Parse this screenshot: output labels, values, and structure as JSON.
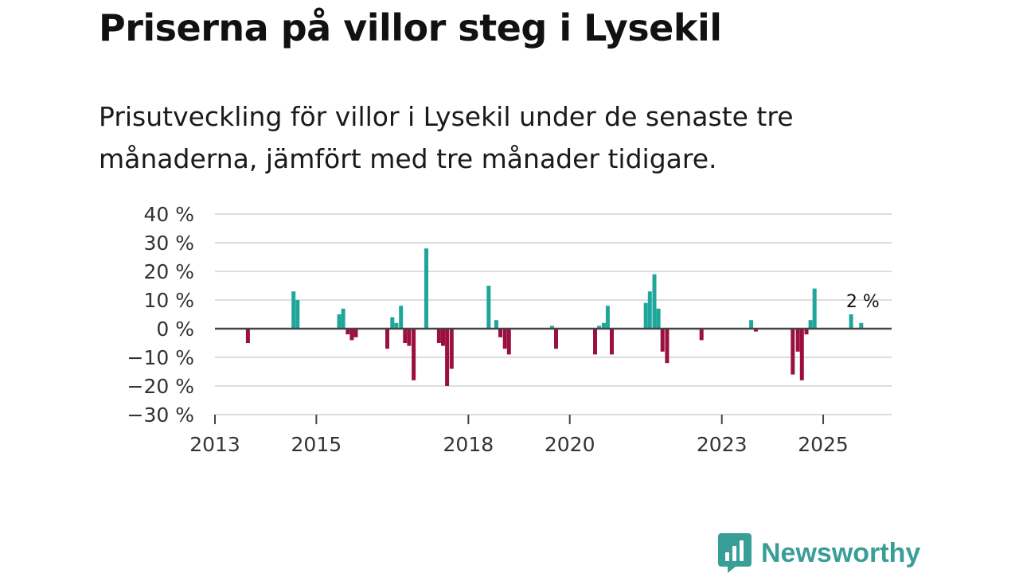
{
  "header": {
    "title": "Priserna på villor steg i Lysekil",
    "subtitle": "Prisutveckling för villor i Lysekil under de senaste tre månaderna, jämfört med tre månader tidigare."
  },
  "brand": {
    "name": "Newsworthy",
    "icon": "newsworthy-logo-icon"
  },
  "colors": {
    "positive": "#1fa69b",
    "negative": "#9b1040",
    "grid": "#dddddd",
    "zero": "#444444",
    "brand": "#3a9e98"
  },
  "chart_data": {
    "type": "bar",
    "title": "Priserna på villor steg i Lysekil",
    "xlabel": "",
    "ylabel": "",
    "ylim": [
      -30,
      40
    ],
    "yticks": [
      40,
      30,
      20,
      10,
      0,
      -10,
      -20,
      -30
    ],
    "ytick_labels": [
      "40 %",
      "30 %",
      "20 %",
      "10 %",
      "0 %",
      "−10 %",
      "−20 %",
      "−30 %"
    ],
    "xlim": [
      2013.0,
      2026.35
    ],
    "xticks": [
      2013,
      2015,
      2018,
      2020,
      2023,
      2025
    ],
    "xtick_labels": [
      "2013",
      "2015",
      "2018",
      "2020",
      "2023",
      "2025"
    ],
    "annotation": {
      "label": "2 %",
      "x": 2025.75,
      "y": 2
    },
    "series": [
      {
        "name": "Prisutveckling",
        "x": [
          2013.65,
          2014.55,
          2014.63,
          2015.45,
          2015.53,
          2015.62,
          2015.7,
          2015.78,
          2016.4,
          2016.5,
          2016.58,
          2016.67,
          2016.75,
          2016.83,
          2016.92,
          2017.17,
          2017.42,
          2017.5,
          2017.58,
          2017.67,
          2018.4,
          2018.55,
          2018.63,
          2018.72,
          2018.8,
          2019.65,
          2019.73,
          2020.5,
          2020.58,
          2020.67,
          2020.75,
          2020.83,
          2021.5,
          2021.58,
          2021.67,
          2021.75,
          2021.83,
          2021.92,
          2022.6,
          2023.58,
          2023.67,
          2024.4,
          2024.5,
          2024.58,
          2024.67,
          2024.75,
          2024.83,
          2025.55,
          2025.75
        ],
        "values": [
          -5,
          13,
          10,
          5,
          7,
          -2,
          -4,
          -3,
          -7,
          4,
          2,
          8,
          -5,
          -6,
          -18,
          28,
          -5,
          -6,
          -20,
          -14,
          15,
          3,
          -3,
          -7,
          -9,
          1,
          -7,
          -9,
          1,
          2,
          8,
          -9,
          9,
          13,
          19,
          7,
          -8,
          -12,
          -4,
          3,
          -1,
          -16,
          -8,
          -18,
          -2,
          3,
          14,
          5,
          2
        ]
      }
    ]
  }
}
